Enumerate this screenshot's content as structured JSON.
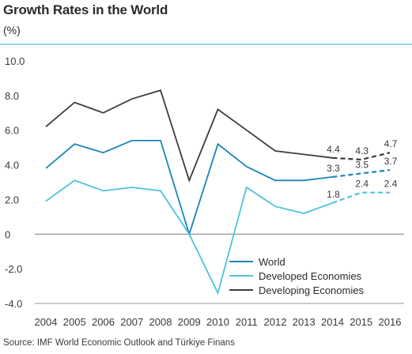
{
  "chart_data": {
    "type": "line",
    "title": "Growth Rates in the World",
    "unit_label": "(%)",
    "source": "Source: IMF World Economic Outlook and Türkiye Finans",
    "x": [
      2004,
      2005,
      2006,
      2007,
      2008,
      2009,
      2010,
      2011,
      2012,
      2013,
      2014,
      2015,
      2016
    ],
    "ylim": [
      -4.0,
      10.0
    ],
    "y_ticks": [
      "10.0",
      "8.0",
      "6.0",
      "4.0",
      "2.0",
      "0",
      "-2.0",
      "-4.0"
    ],
    "y_tick_values": [
      10,
      8,
      6,
      4,
      2,
      0,
      -2,
      -4
    ],
    "forecast_from": 2014,
    "series": [
      {
        "name": "World",
        "color": "#1a86b8",
        "values": [
          3.8,
          5.2,
          4.7,
          5.4,
          5.4,
          0.0,
          5.2,
          3.9,
          3.1,
          3.1,
          3.3,
          3.5,
          3.7
        ],
        "labels": [
          {
            "x": 2014,
            "text": "3.3"
          },
          {
            "x": 2015,
            "text": "3.5"
          },
          {
            "x": 2016,
            "text": "3.7"
          }
        ]
      },
      {
        "name": "Developed Economies",
        "color": "#4ec3dc",
        "values": [
          1.9,
          3.1,
          2.5,
          2.7,
          2.5,
          0.0,
          -3.4,
          2.7,
          1.6,
          1.2,
          1.8,
          2.4,
          2.4
        ],
        "labels": [
          {
            "x": 2014,
            "text": "1.8"
          },
          {
            "x": 2015,
            "text": "2.4"
          },
          {
            "x": 2016,
            "text": "2.4"
          }
        ]
      },
      {
        "name": "Developing Economies",
        "color": "#3d3d3d",
        "values": [
          6.2,
          7.6,
          7.0,
          7.8,
          8.3,
          3.1,
          7.2,
          6.0,
          4.8,
          4.6,
          4.4,
          4.3,
          4.7
        ],
        "labels": [
          {
            "x": 2014,
            "text": "4.4"
          },
          {
            "x": 2015,
            "text": "4.3"
          },
          {
            "x": 2016,
            "text": "4.7"
          }
        ]
      }
    ],
    "legend_position": "bottom-right",
    "grid": false
  }
}
